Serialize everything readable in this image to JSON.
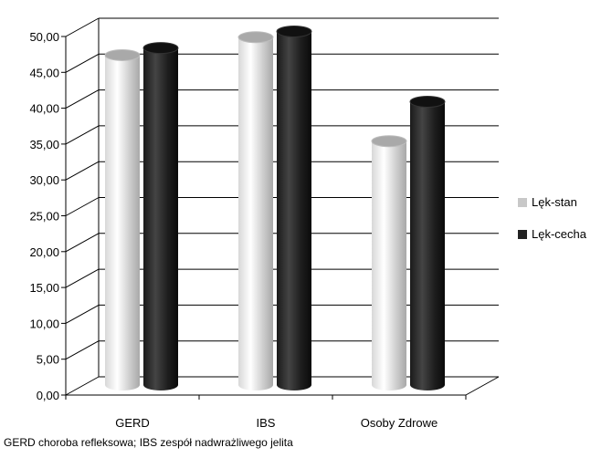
{
  "chart_data": {
    "type": "bar",
    "style": "3d-cylinder",
    "categories": [
      "GERD",
      "IBS",
      "Osoby Zdrowe"
    ],
    "series": [
      {
        "name": "Lęk-stan",
        "values": [
          46.0,
          48.5,
          34.0
        ],
        "color": "#c8c8c8"
      },
      {
        "name": "Lęk-cecha",
        "values": [
          47.0,
          49.3,
          39.5
        ],
        "color": "#222222"
      }
    ],
    "ylim": [
      0,
      50
    ],
    "yticks": [
      "0,00",
      "5,00",
      "10,00",
      "15,00",
      "20,00",
      "25,00",
      "30,00",
      "35,00",
      "40,00",
      "45,00",
      "50,00"
    ],
    "grid": true,
    "legend_position": "right"
  },
  "footnote": "GERD choroba refleksowa; IBS zespół nadwrażliwego jelita"
}
